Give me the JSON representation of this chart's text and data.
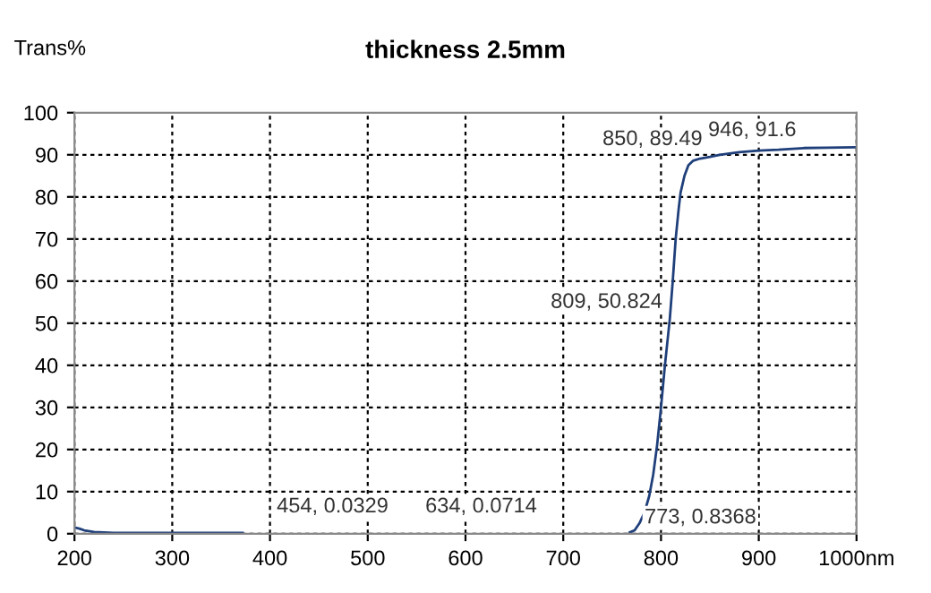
{
  "chart_data": {
    "type": "line",
    "title": "thickness 2.5mm",
    "ylabel": "Trans%",
    "x": [
      200,
      205,
      210,
      220,
      240,
      260,
      300,
      340,
      372,
      762,
      768,
      773,
      778,
      783,
      788,
      792,
      796,
      800,
      804,
      809,
      812,
      815,
      818,
      820,
      824,
      828,
      833,
      840,
      850,
      860,
      880,
      900,
      920,
      946,
      970,
      1000
    ],
    "series": [
      {
        "color": "#1f3f7a",
        "values": [
          1.5,
          1.2,
          0.8,
          0.4,
          0.2,
          0.2,
          0.2,
          0.2,
          0.2,
          null,
          0.3,
          0.8,
          2.5,
          5,
          9,
          14,
          21,
          30,
          40,
          51,
          60,
          70,
          77,
          81,
          85,
          87.5,
          88.6,
          89.1,
          89.49,
          90,
          90.6,
          91,
          91.2,
          91.6,
          91.7,
          91.8
        ]
      }
    ],
    "xlim": [
      200,
      1000
    ],
    "ylim": [
      0,
      100
    ],
    "xticks": [
      200,
      300,
      400,
      500,
      600,
      700,
      800,
      900,
      {
        "value": 1000,
        "label": "1000nm"
      }
    ],
    "yticks": [
      0,
      10,
      20,
      30,
      40,
      50,
      60,
      70,
      80,
      90,
      100
    ],
    "grid": true,
    "line_style": "solid",
    "marker": "none",
    "annotations": [
      "454, 0.0329",
      "634, 0.0714",
      {
        "text": "773, 0.8368",
        "x": 773,
        "y": 0.8368
      },
      {
        "text": "809, 50.824",
        "x": 809,
        "y": 50.824
      },
      {
        "text": "850, 89.49",
        "x": 850,
        "y": 89.49
      },
      {
        "text": "946, 91.6",
        "x": 946,
        "y": 91.6
      }
    ]
  }
}
